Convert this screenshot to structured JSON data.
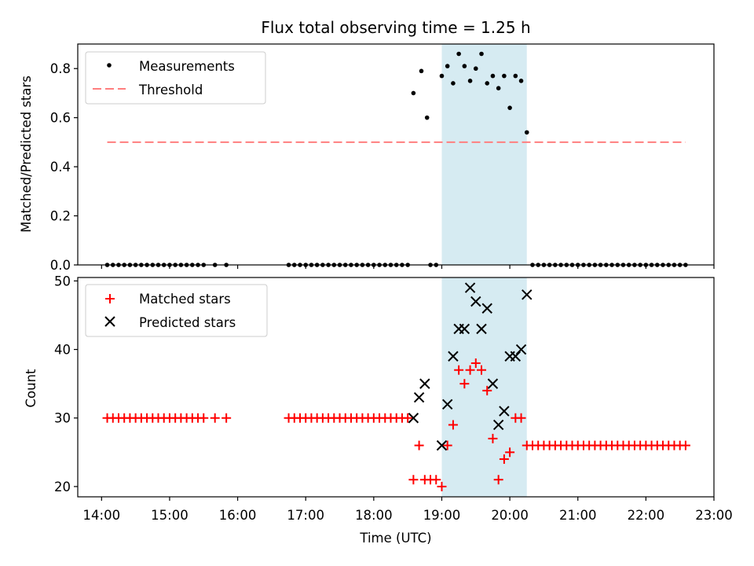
{
  "chart_data": [
    {
      "type": "scatter",
      "title": "Flux total observing time = 1.25 h",
      "xlabel": "",
      "ylabel": "Matched/Predicted stars",
      "xlim": [
        "13:39",
        "23:00"
      ],
      "ylim": [
        0,
        0.9
      ],
      "yticks": [
        "0.0",
        "0.2",
        "0.4",
        "0.6",
        "0.8"
      ],
      "grid": false,
      "legend": {
        "placement": "upper-left",
        "entries": [
          "Measurements",
          "Threshold"
        ]
      },
      "highlight_span": {
        "x": [
          "19:00",
          "20:15"
        ],
        "color": "#add8e6"
      },
      "series": [
        {
          "name": "Measurements",
          "marker": "dot",
          "color": "#000000",
          "points": [
            [
              "14:05",
              0
            ],
            [
              "14:10",
              0
            ],
            [
              "14:15",
              0
            ],
            [
              "14:20",
              0
            ],
            [
              "14:25",
              0
            ],
            [
              "14:30",
              0
            ],
            [
              "14:35",
              0
            ],
            [
              "14:40",
              0
            ],
            [
              "14:45",
              0
            ],
            [
              "14:50",
              0
            ],
            [
              "14:55",
              0
            ],
            [
              "15:00",
              0
            ],
            [
              "15:05",
              0
            ],
            [
              "15:10",
              0
            ],
            [
              "15:15",
              0
            ],
            [
              "15:20",
              0
            ],
            [
              "15:25",
              0
            ],
            [
              "15:30",
              0
            ],
            [
              "15:40",
              0
            ],
            [
              "15:50",
              0
            ],
            [
              "16:45",
              0
            ],
            [
              "16:50",
              0
            ],
            [
              "16:55",
              0
            ],
            [
              "17:00",
              0
            ],
            [
              "17:05",
              0
            ],
            [
              "17:10",
              0
            ],
            [
              "17:15",
              0
            ],
            [
              "17:20",
              0
            ],
            [
              "17:25",
              0
            ],
            [
              "17:30",
              0
            ],
            [
              "17:35",
              0
            ],
            [
              "17:40",
              0
            ],
            [
              "17:45",
              0
            ],
            [
              "17:50",
              0
            ],
            [
              "17:55",
              0
            ],
            [
              "18:00",
              0
            ],
            [
              "18:05",
              0
            ],
            [
              "18:10",
              0
            ],
            [
              "18:15",
              0
            ],
            [
              "18:20",
              0
            ],
            [
              "18:25",
              0
            ],
            [
              "18:30",
              0
            ],
            [
              "18:35",
              0.7
            ],
            [
              "18:42",
              0.79
            ],
            [
              "18:47",
              0.6
            ],
            [
              "18:50",
              0
            ],
            [
              "18:55",
              0
            ],
            [
              "19:00",
              0.77
            ],
            [
              "19:05",
              0.81
            ],
            [
              "19:10",
              0.74
            ],
            [
              "19:15",
              0.86
            ],
            [
              "19:20",
              0.81
            ],
            [
              "19:25",
              0.75
            ],
            [
              "19:30",
              0.8
            ],
            [
              "19:35",
              0.86
            ],
            [
              "19:40",
              0.74
            ],
            [
              "19:45",
              0.77
            ],
            [
              "19:50",
              0.72
            ],
            [
              "19:55",
              0.77
            ],
            [
              "20:00",
              0.64
            ],
            [
              "20:05",
              0.77
            ],
            [
              "20:10",
              0.75
            ],
            [
              "20:15",
              0.54
            ],
            [
              "20:20",
              0
            ],
            [
              "20:25",
              0
            ],
            [
              "20:30",
              0
            ],
            [
              "20:35",
              0
            ],
            [
              "20:40",
              0
            ],
            [
              "20:45",
              0
            ],
            [
              "20:50",
              0
            ],
            [
              "20:55",
              0
            ],
            [
              "21:00",
              0
            ],
            [
              "21:05",
              0
            ],
            [
              "21:10",
              0
            ],
            [
              "21:15",
              0
            ],
            [
              "21:20",
              0
            ],
            [
              "21:25",
              0
            ],
            [
              "21:30",
              0
            ],
            [
              "21:35",
              0
            ],
            [
              "21:40",
              0
            ],
            [
              "21:45",
              0
            ],
            [
              "21:50",
              0
            ],
            [
              "21:55",
              0
            ],
            [
              "22:00",
              0
            ],
            [
              "22:05",
              0
            ],
            [
              "22:10",
              0
            ],
            [
              "22:15",
              0
            ],
            [
              "22:20",
              0
            ],
            [
              "22:25",
              0
            ],
            [
              "22:30",
              0
            ],
            [
              "22:35",
              0
            ]
          ]
        },
        {
          "name": "Threshold",
          "type": "line",
          "style": "dashed",
          "color": "#ff7f7f",
          "points": [
            [
              "14:05",
              0.5
            ],
            [
              "22:35",
              0.5
            ]
          ]
        }
      ]
    },
    {
      "type": "scatter",
      "title": "",
      "xlabel": "Time (UTC)",
      "ylabel": "Count",
      "xlim": [
        "13:39",
        "23:00"
      ],
      "ylim": [
        18.5,
        50.5
      ],
      "yticks": [
        "20",
        "30",
        "40",
        "50"
      ],
      "xticks": [
        "14:00",
        "15:00",
        "16:00",
        "17:00",
        "18:00",
        "19:00",
        "20:00",
        "21:00",
        "22:00",
        "23:00"
      ],
      "grid": false,
      "legend": {
        "placement": "upper-left",
        "entries": [
          "Matched stars",
          "Predicted stars"
        ]
      },
      "highlight_span": {
        "x": [
          "19:00",
          "20:15"
        ],
        "color": "#add8e6"
      },
      "series": [
        {
          "name": "Matched stars",
          "marker": "plus",
          "color": "#ff0000",
          "points": [
            [
              "14:05",
              30
            ],
            [
              "14:10",
              30
            ],
            [
              "14:15",
              30
            ],
            [
              "14:20",
              30
            ],
            [
              "14:25",
              30
            ],
            [
              "14:30",
              30
            ],
            [
              "14:35",
              30
            ],
            [
              "14:40",
              30
            ],
            [
              "14:45",
              30
            ],
            [
              "14:50",
              30
            ],
            [
              "14:55",
              30
            ],
            [
              "15:00",
              30
            ],
            [
              "15:05",
              30
            ],
            [
              "15:10",
              30
            ],
            [
              "15:15",
              30
            ],
            [
              "15:20",
              30
            ],
            [
              "15:25",
              30
            ],
            [
              "15:30",
              30
            ],
            [
              "15:40",
              30
            ],
            [
              "15:50",
              30
            ],
            [
              "16:45",
              30
            ],
            [
              "16:50",
              30
            ],
            [
              "16:55",
              30
            ],
            [
              "17:00",
              30
            ],
            [
              "17:05",
              30
            ],
            [
              "17:10",
              30
            ],
            [
              "17:15",
              30
            ],
            [
              "17:20",
              30
            ],
            [
              "17:25",
              30
            ],
            [
              "17:30",
              30
            ],
            [
              "17:35",
              30
            ],
            [
              "17:40",
              30
            ],
            [
              "17:45",
              30
            ],
            [
              "17:50",
              30
            ],
            [
              "17:55",
              30
            ],
            [
              "18:00",
              30
            ],
            [
              "18:05",
              30
            ],
            [
              "18:10",
              30
            ],
            [
              "18:15",
              30
            ],
            [
              "18:20",
              30
            ],
            [
              "18:25",
              30
            ],
            [
              "18:30",
              30
            ],
            [
              "18:35",
              21
            ],
            [
              "18:40",
              26
            ],
            [
              "18:45",
              21
            ],
            [
              "18:50",
              21
            ],
            [
              "18:55",
              21
            ],
            [
              "19:00",
              20
            ],
            [
              "19:05",
              26
            ],
            [
              "19:10",
              29
            ],
            [
              "19:15",
              37
            ],
            [
              "19:20",
              35
            ],
            [
              "19:25",
              37
            ],
            [
              "19:30",
              38
            ],
            [
              "19:35",
              37
            ],
            [
              "19:40",
              34
            ],
            [
              "19:45",
              27
            ],
            [
              "19:50",
              21
            ],
            [
              "19:55",
              24
            ],
            [
              "20:00",
              25
            ],
            [
              "20:05",
              30
            ],
            [
              "20:10",
              30
            ],
            [
              "20:15",
              26
            ],
            [
              "20:20",
              26
            ],
            [
              "20:25",
              26
            ],
            [
              "20:30",
              26
            ],
            [
              "20:35",
              26
            ],
            [
              "20:40",
              26
            ],
            [
              "20:45",
              26
            ],
            [
              "20:50",
              26
            ],
            [
              "20:55",
              26
            ],
            [
              "21:00",
              26
            ],
            [
              "21:05",
              26
            ],
            [
              "21:10",
              26
            ],
            [
              "21:15",
              26
            ],
            [
              "21:20",
              26
            ],
            [
              "21:25",
              26
            ],
            [
              "21:30",
              26
            ],
            [
              "21:35",
              26
            ],
            [
              "21:40",
              26
            ],
            [
              "21:45",
              26
            ],
            [
              "21:50",
              26
            ],
            [
              "21:55",
              26
            ],
            [
              "22:00",
              26
            ],
            [
              "22:05",
              26
            ],
            [
              "22:10",
              26
            ],
            [
              "22:15",
              26
            ],
            [
              "22:20",
              26
            ],
            [
              "22:25",
              26
            ],
            [
              "22:30",
              26
            ],
            [
              "22:35",
              26
            ]
          ]
        },
        {
          "name": "Predicted stars",
          "marker": "x",
          "color": "#000000",
          "points": [
            [
              "18:35",
              30
            ],
            [
              "18:40",
              33
            ],
            [
              "18:45",
              35
            ],
            [
              "19:00",
              26
            ],
            [
              "19:05",
              32
            ],
            [
              "19:10",
              39
            ],
            [
              "19:15",
              43
            ],
            [
              "19:20",
              43
            ],
            [
              "19:25",
              49
            ],
            [
              "19:30",
              47
            ],
            [
              "19:35",
              43
            ],
            [
              "19:40",
              46
            ],
            [
              "19:45",
              35
            ],
            [
              "19:50",
              29
            ],
            [
              "19:55",
              31
            ],
            [
              "20:00",
              39
            ],
            [
              "20:05",
              39
            ],
            [
              "20:10",
              40
            ],
            [
              "20:15",
              48
            ]
          ]
        }
      ]
    }
  ]
}
